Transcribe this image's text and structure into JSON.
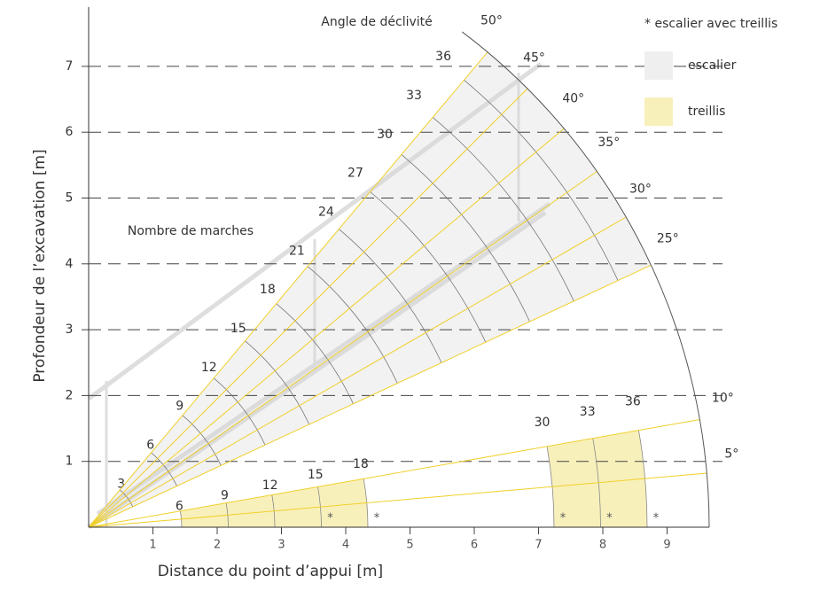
{
  "title": "Angle de déclivité",
  "steps_label": "Nombre de marches",
  "axes": {
    "x_label": "Distance du point d’appui [m]",
    "y_label": "Profondeur de l’excavation [m]",
    "xticks": [
      1,
      2,
      3,
      4,
      5,
      6,
      7,
      8,
      9
    ],
    "yticks": [
      1,
      2,
      3,
      4,
      5,
      6,
      7
    ]
  },
  "angles": [
    {
      "value": 50,
      "label": "50°"
    },
    {
      "value": 45,
      "label": "45°"
    },
    {
      "value": 40,
      "label": "40°"
    },
    {
      "value": 35,
      "label": "35°"
    },
    {
      "value": 30,
      "label": "30°"
    },
    {
      "value": 25,
      "label": "25°"
    },
    {
      "value": 10,
      "label": "10°"
    },
    {
      "value": 5,
      "label": "5°"
    }
  ],
  "upper_steps": [
    3,
    6,
    9,
    12,
    15,
    18,
    21,
    24,
    27,
    30,
    33,
    36
  ],
  "lower_steps": [
    {
      "value": 6
    },
    {
      "value": 9
    },
    {
      "value": 12
    },
    {
      "value": 15,
      "note": "*"
    },
    {
      "value": 18,
      "note": "*"
    },
    {
      "value": 30,
      "note": "*"
    },
    {
      "value": 33,
      "note": "*"
    },
    {
      "value": 36,
      "note": "*"
    }
  ],
  "legend": {
    "note": "* escalier avec treillis",
    "items": [
      {
        "label": "escalier",
        "color": "#efefef"
      },
      {
        "label": "treillis",
        "color": "#f8f0bb"
      }
    ]
  }
}
